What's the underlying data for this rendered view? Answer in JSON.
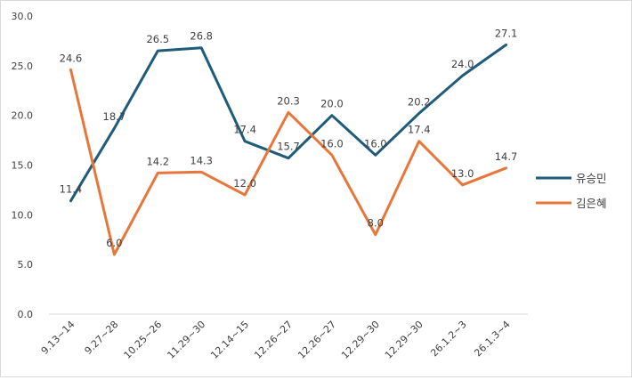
{
  "chart_data": {
    "type": "line",
    "title": "",
    "xlabel": "",
    "ylabel": "",
    "ylim": [
      0,
      30
    ],
    "y_ticks": [
      "0.0",
      "5.0",
      "10.0",
      "15.0",
      "20.0",
      "25.0",
      "30.0"
    ],
    "y_tick_values": [
      0,
      5,
      10,
      15,
      20,
      25,
      30
    ],
    "grid": false,
    "legend_position": "right",
    "categories": [
      "9.13~14",
      "9.27~28",
      "10.25~26",
      "11.29~30",
      "12.14~15",
      "12.26~27",
      "12.26~27",
      "12.29~30",
      "12.29~30",
      "26.1.2~3",
      "26.1.3~4"
    ],
    "series": [
      {
        "name": "유승민",
        "color": "#1f5b7a",
        "values": [
          11.4,
          18.7,
          26.5,
          26.8,
          17.4,
          15.7,
          20.0,
          16.0,
          20.2,
          24.0,
          27.1
        ],
        "labels": [
          "11.4",
          "18.7",
          "26.5",
          "26.8",
          "17.4",
          "15.7",
          "20.0",
          "16.0",
          "20.2",
          "24.0",
          "27.1"
        ]
      },
      {
        "name": "김은혜",
        "color": "#e8763a",
        "values": [
          24.6,
          6.0,
          14.2,
          14.3,
          12.0,
          20.3,
          16.0,
          8.0,
          17.4,
          13.0,
          14.7
        ],
        "labels": [
          "24.6",
          "6.0",
          "14.2",
          "14.3",
          "12.0",
          "20.3",
          "16.0",
          "8.0",
          "17.4",
          "13.0",
          "14.7"
        ]
      }
    ]
  }
}
